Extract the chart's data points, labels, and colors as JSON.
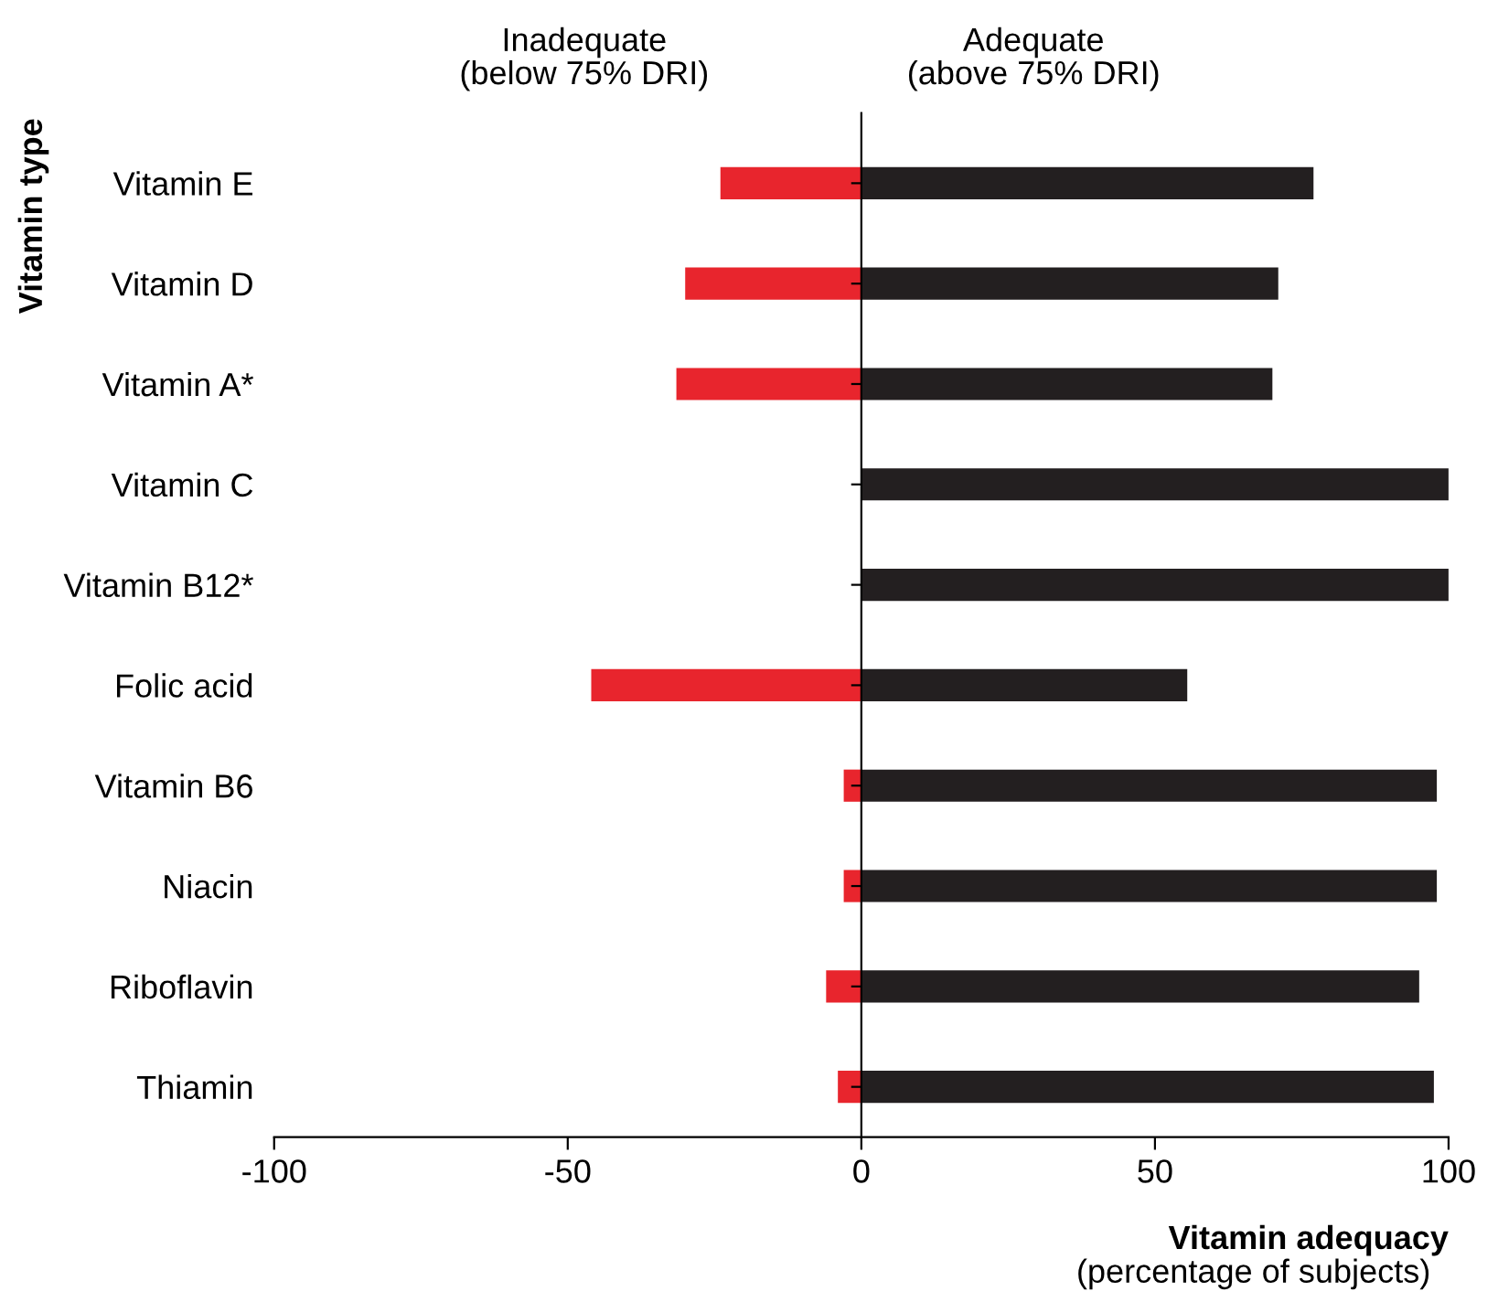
{
  "chart_data": {
    "type": "bar",
    "orientation": "horizontal",
    "stacked": true,
    "categories": [
      "Vitamin E",
      "Vitamin D",
      "Vitamin A*",
      "Vitamin C",
      "Vitamin B12*",
      "Folic acid",
      "Vitamin B6",
      "Niacin",
      "Riboflavin",
      "Thiamin"
    ],
    "series": [
      {
        "color": "#e8252d",
        "values": [
          -24,
          -30,
          -31.5,
          0,
          0,
          -46,
          -3,
          -3,
          -6,
          -4
        ]
      },
      {
        "color": "#231f20",
        "values": [
          77,
          71,
          70,
          100,
          100,
          55.5,
          98,
          98,
          95,
          97.5
        ]
      }
    ],
    "xlim": [
      -100,
      100
    ],
    "xticks": [
      {
        "value": -100,
        "label": "-100"
      },
      {
        "value": -50,
        "label": "-50"
      },
      0,
      50,
      100
    ],
    "xlabel": "Vitamin adequacy",
    "ylabel": "Vitamin type",
    "annotations": [
      "Inadequate\n(below 75% DRI)",
      "Adequate\n(above 75% DRI)",
      "(percentage of subjects)"
    ]
  }
}
